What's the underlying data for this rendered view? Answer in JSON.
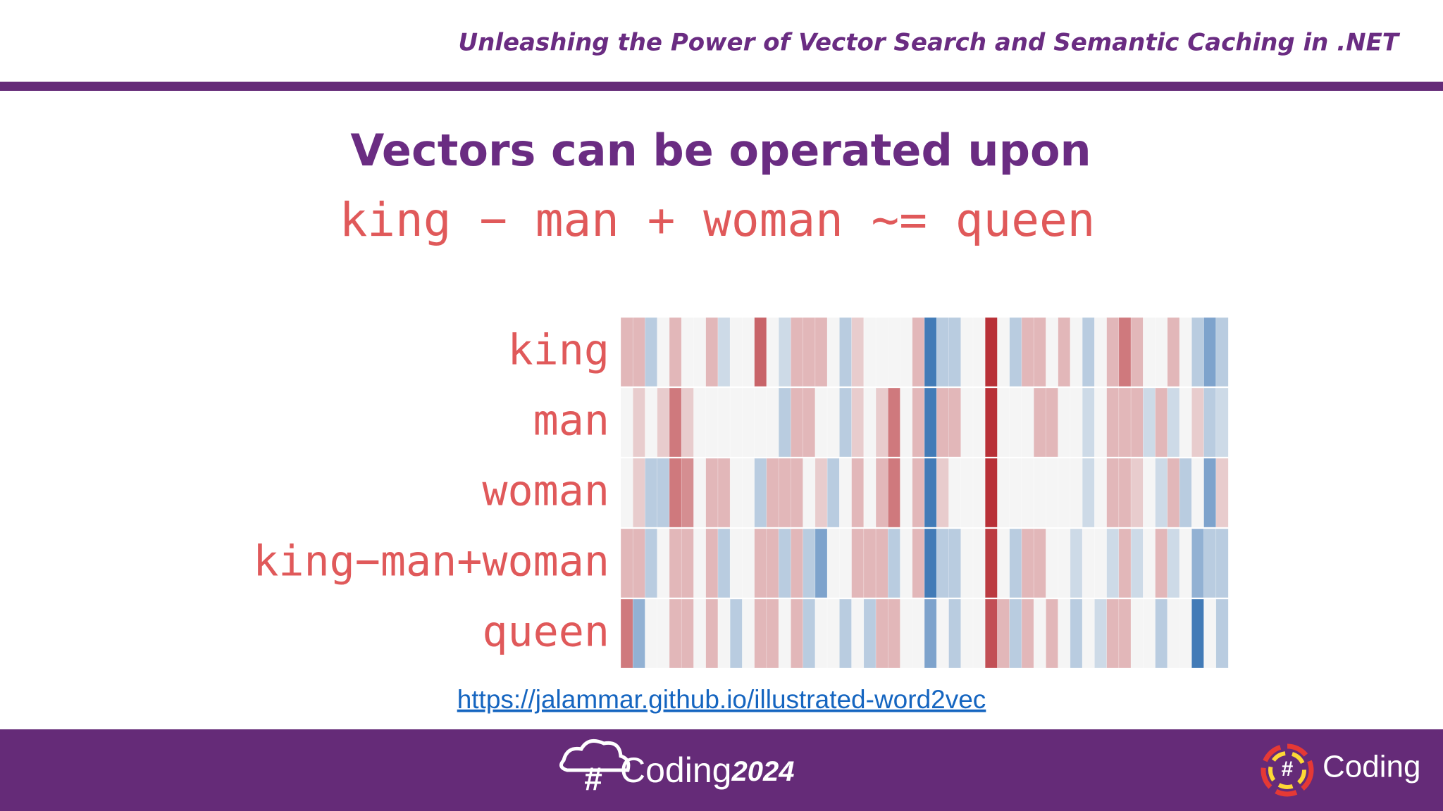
{
  "header": {
    "title": "Unleashing the Power of Vector Search and Semantic Caching in .NET"
  },
  "slide": {
    "title": "Vectors can be operated upon",
    "equation": "king − man + woman ~= queen"
  },
  "chart_data": {
    "type": "heatmap",
    "zlim": [
      -1,
      1
    ],
    "colormap": [
      "#2e6db0",
      "#f5f5f5",
      "#b5262d"
    ],
    "series": [
      {
        "name": "king",
        "values": [
          0.3,
          0.3,
          -0.3,
          0,
          0.3,
          0,
          0,
          0.3,
          -0.2,
          0,
          0,
          0.7,
          0,
          -0.2,
          0.3,
          0.3,
          0.3,
          0,
          -0.3,
          0.2,
          0,
          0,
          0,
          0,
          0.3,
          -0.9,
          -0.3,
          -0.3,
          0,
          0,
          0.95,
          0,
          -0.3,
          0.3,
          0.3,
          0,
          0.3,
          0,
          -0.3,
          0,
          0.3,
          0.6,
          0.3,
          0,
          0,
          0.3,
          0,
          -0.3,
          -0.6,
          -0.3
        ]
      },
      {
        "name": "man",
        "values": [
          0,
          0.2,
          0,
          0.2,
          0.6,
          0.2,
          0,
          0,
          0,
          0,
          0,
          0,
          0,
          -0.3,
          0.3,
          0.3,
          0,
          0,
          -0.3,
          0.2,
          0,
          0.2,
          0.6,
          0,
          0.3,
          -0.9,
          0.3,
          0.3,
          0,
          0,
          0.95,
          0,
          0,
          0,
          0.3,
          0.3,
          0,
          0,
          -0.2,
          0,
          0.3,
          0.3,
          0.3,
          -0.2,
          0.3,
          -0.2,
          0,
          0.2,
          -0.3,
          -0.2
        ]
      },
      {
        "name": "woman",
        "values": [
          0,
          0.2,
          -0.3,
          -0.3,
          0.6,
          0.5,
          0,
          0.3,
          0.3,
          0,
          0,
          -0.3,
          0.3,
          0.3,
          0.3,
          0,
          0.2,
          -0.3,
          0,
          0.3,
          0,
          0.3,
          0.6,
          0,
          0.3,
          -0.9,
          0.2,
          0,
          0,
          0,
          0.95,
          0,
          0,
          0,
          0,
          0,
          0,
          0,
          -0.2,
          0,
          0.3,
          0.3,
          0.2,
          0,
          -0.2,
          0.3,
          -0.3,
          0,
          -0.6,
          0.2
        ]
      },
      {
        "name": "king−man+woman",
        "values": [
          0.3,
          0.3,
          -0.3,
          0,
          0.3,
          0.3,
          0,
          0.3,
          -0.3,
          0,
          0,
          0.3,
          0.3,
          -0.3,
          0.3,
          -0.3,
          -0.6,
          0,
          0,
          0.3,
          0.3,
          0.3,
          -0.3,
          0,
          0.3,
          -0.9,
          -0.3,
          -0.3,
          0,
          0,
          0.9,
          0,
          -0.3,
          0.3,
          0.3,
          0,
          0,
          -0.2,
          0,
          0,
          -0.2,
          0.3,
          -0.2,
          0,
          0.3,
          -0.2,
          0,
          -0.5,
          -0.3,
          -0.3
        ]
      },
      {
        "name": "queen",
        "values": [
          0.6,
          -0.5,
          0,
          0,
          0.3,
          0.3,
          0,
          0.3,
          0,
          -0.3,
          0,
          0.3,
          0.3,
          0,
          0.3,
          -0.3,
          0,
          0,
          -0.3,
          0,
          -0.3,
          0.3,
          0.3,
          0,
          0,
          -0.6,
          0,
          -0.3,
          0,
          0,
          0.8,
          0.3,
          -0.3,
          0.3,
          0,
          0.3,
          0,
          -0.3,
          0,
          -0.2,
          0.3,
          0.3,
          0,
          0,
          -0.3,
          0,
          0,
          -0.9,
          0,
          -0.3
        ]
      }
    ]
  },
  "link": "https://jalammar.github.io/illustrated-word2vec",
  "footer": {
    "left_mark": "#",
    "left_logo": "Coding",
    "left_year": "2024",
    "right_mark": "#",
    "right_logo": "Coding"
  }
}
